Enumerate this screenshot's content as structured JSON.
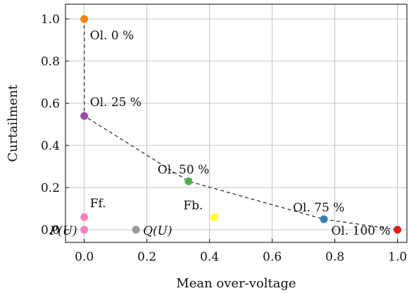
{
  "chart_data": {
    "type": "scatter",
    "title": "",
    "xlabel": "Mean over-voltage",
    "ylabel": "Curtailment",
    "xlim": [
      -0.06,
      1.03
    ],
    "ylim": [
      -0.06,
      1.07
    ],
    "x_ticks": [
      "0.0",
      "0.2",
      "0.4",
      "0.6",
      "0.8",
      "1.0"
    ],
    "y_ticks": [
      "0.0",
      "0.2",
      "0.4",
      "0.6",
      "0.8",
      "1.0"
    ],
    "grid": true,
    "legend": "none",
    "points": [
      {
        "label": "Ol. 0 %",
        "x": 0.0,
        "y": 1.0,
        "color": "#ff7f00",
        "label_pos": "below-right"
      },
      {
        "label": "Ol. 25 %",
        "x": 0.0,
        "y": 0.54,
        "color": "#984ea3",
        "label_pos": "above-right"
      },
      {
        "label": "Ol. 50 %",
        "x": 0.333,
        "y": 0.23,
        "color": "#4daf4a",
        "label_pos": "above-left"
      },
      {
        "label": "Ol. 75 %",
        "x": 0.765,
        "y": 0.05,
        "color": "#377eb8",
        "label_pos": "above-left"
      },
      {
        "label": "Ol. 100 %",
        "x": 1.0,
        "y": 0.0,
        "color": "#e41a1c",
        "label_pos": "left"
      },
      {
        "label": "Ff.",
        "x": 0.0,
        "y": 0.06,
        "color": "#f781bf",
        "label_pos": "above-right"
      },
      {
        "label": "Fb.",
        "x": 0.415,
        "y": 0.06,
        "color": "#ffff33",
        "label_pos": "above-left"
      },
      {
        "label": "P(U)",
        "x": 0.0,
        "y": 0.0,
        "color": "#f781bf",
        "label_pos": "left",
        "italic": true
      },
      {
        "label": "Q(U)",
        "x": 0.165,
        "y": 0.0,
        "color": "#999999",
        "label_pos": "right",
        "italic": true
      }
    ],
    "dashed_line": [
      {
        "x": 0.0,
        "y": 1.0
      },
      {
        "x": 0.0,
        "y": 0.54
      },
      {
        "x": 0.333,
        "y": 0.23
      },
      {
        "x": 0.765,
        "y": 0.05
      },
      {
        "x": 1.0,
        "y": 0.0
      }
    ]
  }
}
